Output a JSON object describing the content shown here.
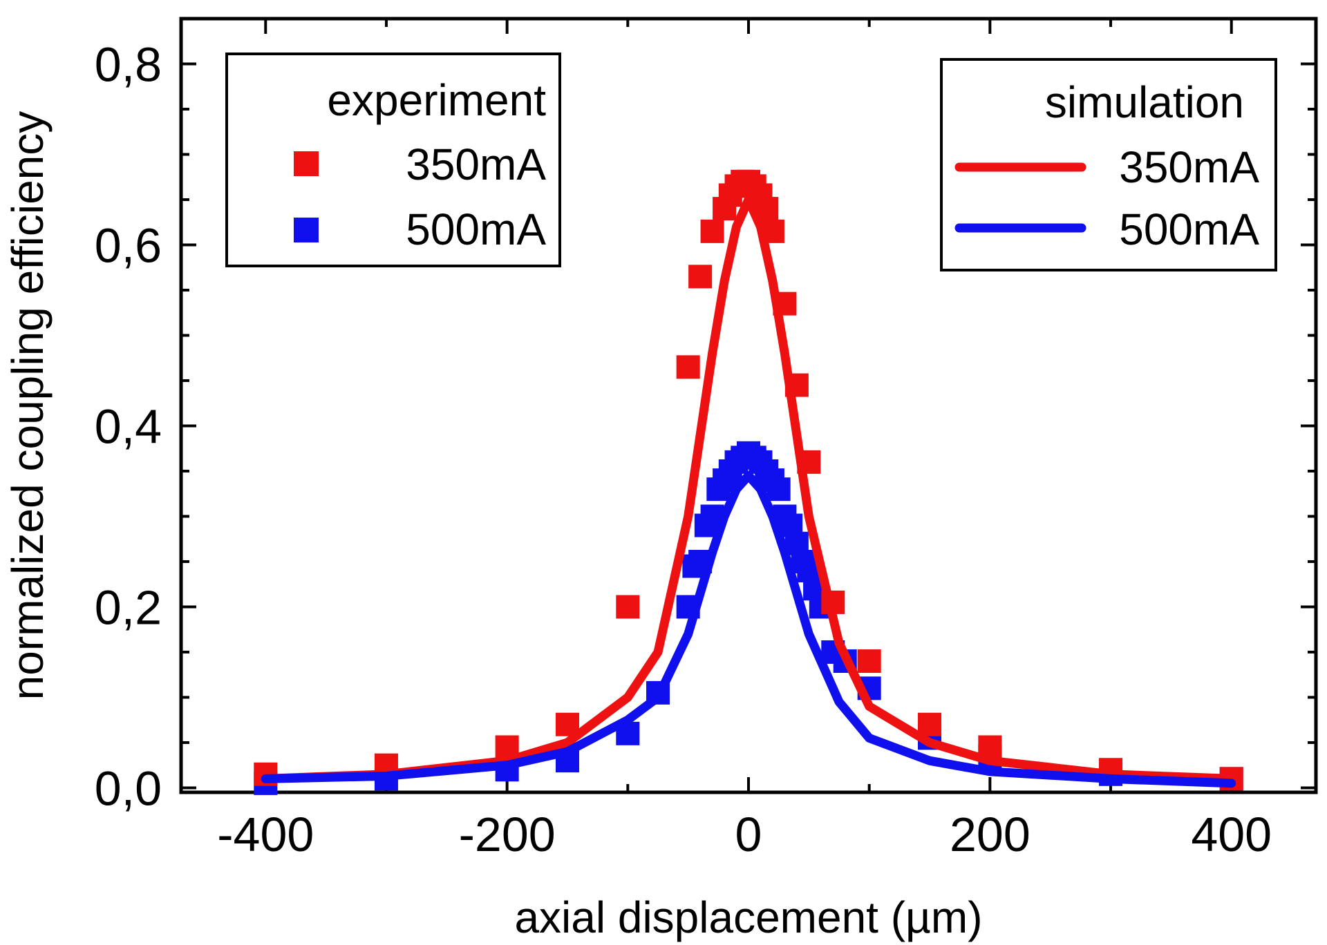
{
  "chart_data": {
    "type": "scatter",
    "xlabel": "axial displacement (µm)",
    "ylabel": "normalized coupling efficiency",
    "xlim": [
      -470,
      470
    ],
    "ylim": [
      -0.005,
      0.85
    ],
    "x_ticks": [
      -400,
      -200,
      0,
      200,
      400
    ],
    "x_tick_labels": [
      "-400",
      "-200",
      "0",
      "200",
      "400"
    ],
    "y_ticks": [
      0.0,
      0.2,
      0.4,
      0.6,
      0.8
    ],
    "y_tick_labels": [
      "0,0",
      "0,2",
      "0,4",
      "0,6",
      "0,8"
    ],
    "grid": false,
    "legends": [
      {
        "placement": "top-left",
        "title": "experiment",
        "entries": [
          {
            "label": "350mA",
            "color": "#ee1111",
            "marker": "square"
          },
          {
            "label": "500mA",
            "color": "#1010ee",
            "marker": "square"
          }
        ]
      },
      {
        "placement": "top-right",
        "title": "simulation",
        "entries": [
          {
            "label": "350mA",
            "color": "#ee1111",
            "marker": "line"
          },
          {
            "label": "500mA",
            "color": "#1010ee",
            "marker": "line"
          }
        ]
      }
    ],
    "series": [
      {
        "name": "experiment 350mA",
        "kind": "points",
        "color": "#ee1111",
        "x": [
          -400,
          -300,
          -200,
          -150,
          -100,
          -50,
          -40,
          -30,
          -20,
          -15,
          -10,
          -5,
          0,
          5,
          10,
          15,
          20,
          30,
          40,
          50,
          70,
          100,
          150,
          200,
          300,
          400
        ],
        "y": [
          0.015,
          0.025,
          0.045,
          0.07,
          0.2,
          0.465,
          0.565,
          0.615,
          0.64,
          0.655,
          0.665,
          0.67,
          0.67,
          0.665,
          0.655,
          0.64,
          0.615,
          0.535,
          0.445,
          0.36,
          0.205,
          0.14,
          0.07,
          0.045,
          0.02,
          0.01
        ]
      },
      {
        "name": "experiment 500mA",
        "kind": "points",
        "color": "#1010ee",
        "x": [
          -400,
          -300,
          -200,
          -150,
          -100,
          -75,
          -50,
          -45,
          -40,
          -35,
          -30,
          -25,
          -20,
          -15,
          -10,
          -5,
          0,
          5,
          10,
          15,
          20,
          25,
          30,
          35,
          40,
          45,
          50,
          55,
          60,
          70,
          80,
          100,
          150,
          200,
          300,
          400
        ],
        "y": [
          0.005,
          0.01,
          0.02,
          0.03,
          0.06,
          0.105,
          0.2,
          0.245,
          0.25,
          0.29,
          0.3,
          0.33,
          0.34,
          0.35,
          0.36,
          0.365,
          0.37,
          0.365,
          0.36,
          0.35,
          0.34,
          0.33,
          0.3,
          0.29,
          0.27,
          0.25,
          0.24,
          0.22,
          0.2,
          0.15,
          0.14,
          0.11,
          0.055,
          0.035,
          0.015,
          0.01
        ]
      },
      {
        "name": "simulation 350mA",
        "kind": "line",
        "color": "#ee1111",
        "x": [
          -400,
          -300,
          -200,
          -150,
          -100,
          -75,
          -50,
          -30,
          -20,
          -10,
          0,
          10,
          20,
          30,
          50,
          75,
          100,
          150,
          200,
          300,
          400
        ],
        "y": [
          0.01,
          0.015,
          0.03,
          0.05,
          0.1,
          0.15,
          0.3,
          0.48,
          0.56,
          0.62,
          0.65,
          0.62,
          0.56,
          0.48,
          0.3,
          0.16,
          0.09,
          0.05,
          0.03,
          0.015,
          0.01
        ]
      },
      {
        "name": "simulation 500mA",
        "kind": "line",
        "color": "#1010ee",
        "x": [
          -400,
          -300,
          -200,
          -150,
          -100,
          -75,
          -50,
          -30,
          -20,
          -10,
          0,
          10,
          20,
          30,
          50,
          75,
          100,
          150,
          200,
          300,
          400
        ],
        "y": [
          0.01,
          0.013,
          0.025,
          0.04,
          0.075,
          0.1,
          0.17,
          0.26,
          0.3,
          0.33,
          0.345,
          0.33,
          0.3,
          0.26,
          0.17,
          0.095,
          0.055,
          0.03,
          0.018,
          0.01,
          0.005
        ]
      }
    ]
  }
}
